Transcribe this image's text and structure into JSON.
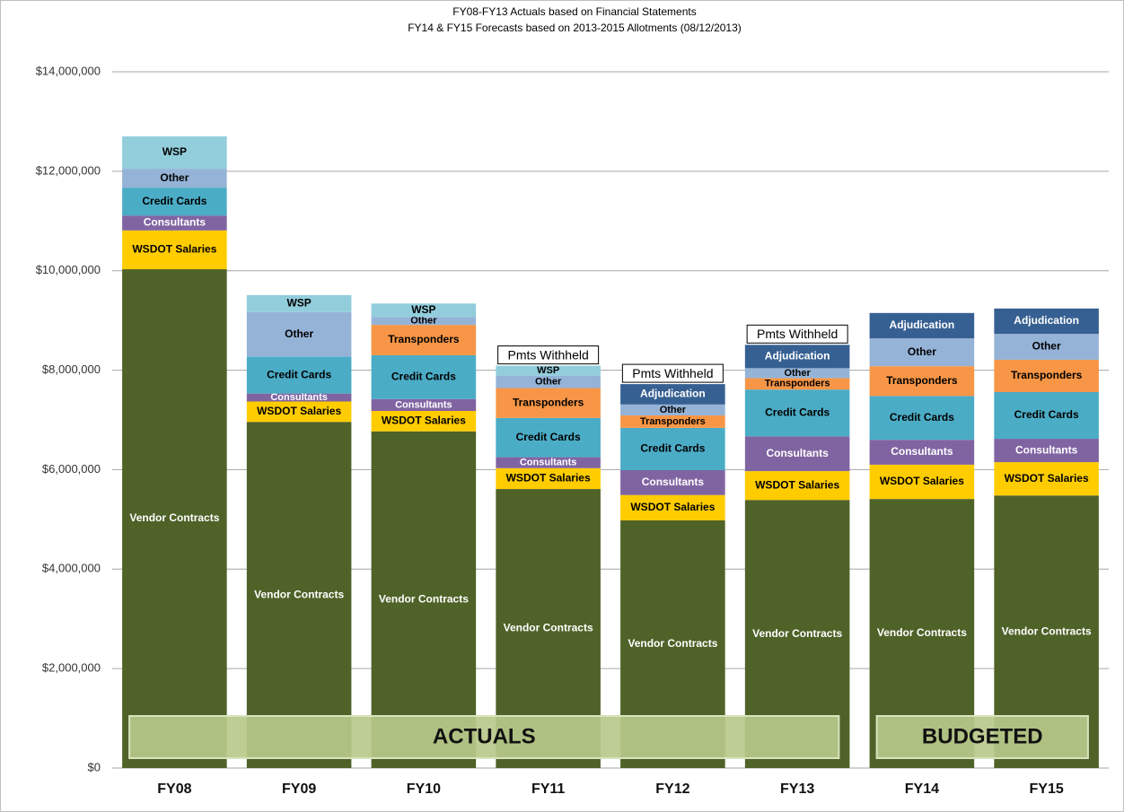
{
  "chart_data": {
    "type": "stacked-bar",
    "title": "FY08-FY13 Actuals based on Financial Statements",
    "subtitle": "FY14 & FY15 Forecasts based on 2013-2015 Allotments (08/12/2013)",
    "categories": [
      "FY08",
      "FY09",
      "FY10",
      "FY11",
      "FY12",
      "FY13",
      "FY14",
      "FY15"
    ],
    "series": [
      {
        "name": "Vendor Contracts",
        "color": "#4f6228",
        "label_color": "#ffffff",
        "values": [
          10.03,
          6.96,
          6.77,
          5.61,
          4.98,
          5.39,
          5.41,
          5.48
        ]
      },
      {
        "name": "WSDOT Salaries",
        "color": "#ffcc00",
        "label_color": "#000000",
        "values": [
          0.78,
          0.41,
          0.41,
          0.42,
          0.51,
          0.58,
          0.69,
          0.67
        ]
      },
      {
        "name": "Consultants",
        "color": "#8064a2",
        "label_color": "#ffffff",
        "values": [
          0.3,
          0.16,
          0.24,
          0.22,
          0.5,
          0.7,
          0.5,
          0.47
        ]
      },
      {
        "name": "Credit Cards",
        "color": "#4bacc6",
        "label_color": "#000000",
        "values": [
          0.56,
          0.74,
          0.88,
          0.79,
          0.85,
          0.94,
          0.88,
          0.94
        ]
      },
      {
        "name": "Transponders",
        "color": "#f79646",
        "label_color": "#000000",
        "values": [
          null,
          null,
          0.61,
          0.6,
          0.25,
          0.23,
          0.6,
          0.65
        ]
      },
      {
        "name": "Other",
        "color": "#95b3d7",
        "label_color": "#000000",
        "values": [
          0.38,
          0.9,
          0.16,
          0.25,
          0.22,
          0.2,
          0.56,
          0.52
        ]
      },
      {
        "name": "WSP",
        "color": "#92cddc",
        "label_color": "#000000",
        "values": [
          0.65,
          0.34,
          0.27,
          0.2,
          null,
          null,
          null,
          null
        ]
      },
      {
        "name": "Adjudication",
        "color": "#376092",
        "label_color": "#ffffff",
        "values": [
          null,
          null,
          null,
          null,
          0.41,
          0.47,
          0.51,
          0.51
        ]
      }
    ],
    "annotations": [
      {
        "text": "Pmts Withheld",
        "x": "FY11"
      },
      {
        "text": "Pmts Withheld",
        "x": "FY12"
      },
      {
        "text": "Pmts Withheld",
        "x": "FY13"
      }
    ],
    "bands": [
      {
        "label": "ACTUALS",
        "from": "FY08",
        "to": "FY13"
      },
      {
        "label": "BUDGETED",
        "from": "FY14",
        "to": "FY15"
      }
    ],
    "ylim": [
      0,
      14
    ],
    "yticks": [
      {
        "value": 0,
        "label": "$0"
      },
      {
        "value": 2,
        "label": "$2,000,000"
      },
      {
        "value": 4,
        "label": "$4,000,000"
      },
      {
        "value": 6,
        "label": "$6,000,000"
      },
      {
        "value": 8,
        "label": "$8,000,000"
      },
      {
        "value": 10,
        "label": "$10,000,000"
      },
      {
        "value": 12,
        "label": "$12,000,000"
      },
      {
        "value": 14,
        "label": "$14,000,000"
      }
    ],
    "grid": true
  }
}
